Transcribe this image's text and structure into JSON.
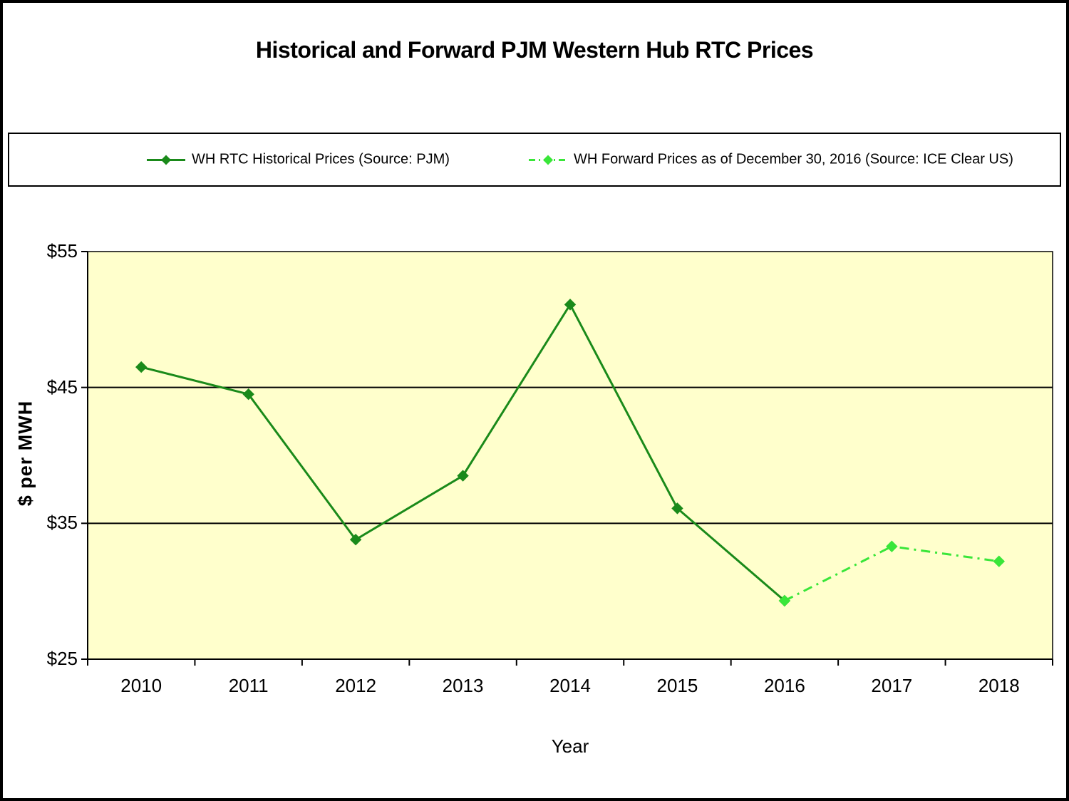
{
  "title": "Historical and Forward PJM Western Hub RTC Prices",
  "colors": {
    "historical": "#1a8a1a",
    "forward": "#39e639",
    "plot_bg": "#ffffcc",
    "axis": "#000000",
    "grid": "#000000"
  },
  "chart_data": {
    "type": "line",
    "title": "Historical and Forward PJM Western Hub RTC Prices",
    "xlabel": "Year",
    "ylabel": "$ per MWH",
    "ylim": [
      25,
      55
    ],
    "yticks": [
      25,
      35,
      45,
      55
    ],
    "ytick_labels": [
      "$25",
      "$35",
      "$45",
      "$55"
    ],
    "categories": [
      "2010",
      "2011",
      "2012",
      "2013",
      "2014",
      "2015",
      "2016",
      "2017",
      "2018"
    ],
    "grid": "horizontal",
    "legend_position": "top",
    "series": [
      {
        "name": "WH RTC Historical Prices (Source: PJM)",
        "style": "solid",
        "color": "#1a8a1a",
        "marker": "diamond",
        "x": [
          2010,
          2011,
          2012,
          2013,
          2014,
          2015,
          2016
        ],
        "values": [
          46.5,
          44.5,
          33.8,
          38.5,
          51.1,
          36.1,
          29.3
        ]
      },
      {
        "name": "WH Forward Prices as of December 30, 2016 (Source: ICE Clear US)",
        "style": "dashdot",
        "color": "#39e639",
        "marker": "diamond",
        "x": [
          2016,
          2017,
          2018
        ],
        "values": [
          29.3,
          33.3,
          32.2
        ]
      }
    ]
  }
}
